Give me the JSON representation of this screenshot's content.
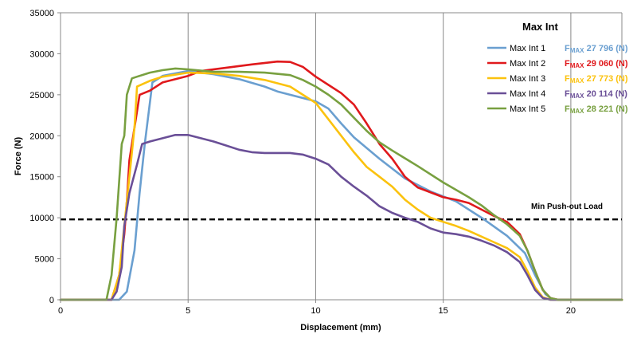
{
  "chart_data": {
    "type": "line",
    "title": "",
    "xlabel": "Displacement (mm)",
    "ylabel": "Force (N)",
    "xlim": [
      0,
      22
    ],
    "ylim": [
      0,
      35000
    ],
    "x_ticks": [
      0,
      5,
      10,
      15,
      20
    ],
    "y_ticks": [
      0,
      5000,
      10000,
      15000,
      20000,
      25000,
      30000,
      35000
    ],
    "grid": "vertical",
    "legend": {
      "title": "Max Int",
      "placement": "top-right",
      "fmax_prefix": "F",
      "fmax_sub": "MAX"
    },
    "reference_line": {
      "label": "Min Push-out Load",
      "y": 9800,
      "style": "dashed"
    },
    "series": [
      {
        "name": "Max Int 1",
        "fmax_text": "27 796 (N)",
        "color": "#6a9fd0",
        "points": [
          [
            0,
            0
          ],
          [
            2.3,
            0
          ],
          [
            2.6,
            1000
          ],
          [
            2.9,
            6000
          ],
          [
            3.1,
            13000
          ],
          [
            3.3,
            19000
          ],
          [
            3.6,
            26500
          ],
          [
            4.0,
            27300
          ],
          [
            5.0,
            27900
          ],
          [
            6.0,
            27500
          ],
          [
            7.0,
            26900
          ],
          [
            8.0,
            26000
          ],
          [
            8.5,
            25400
          ],
          [
            9.0,
            25000
          ],
          [
            10.0,
            24200
          ],
          [
            10.5,
            23300
          ],
          [
            11.0,
            21500
          ],
          [
            11.5,
            19800
          ],
          [
            12.5,
            17200
          ],
          [
            13.5,
            14800
          ],
          [
            14.5,
            13200
          ],
          [
            15.5,
            12000
          ],
          [
            16.5,
            10000
          ],
          [
            17.5,
            7800
          ],
          [
            18.2,
            5700
          ],
          [
            18.6,
            3000
          ],
          [
            19.0,
            700
          ],
          [
            19.3,
            0
          ],
          [
            22,
            0
          ]
        ]
      },
      {
        "name": "Max Int 2",
        "fmax_text": "29 060 (N)",
        "color": "#e0191c",
        "points": [
          [
            0,
            0
          ],
          [
            2.0,
            0
          ],
          [
            2.3,
            3000
          ],
          [
            2.5,
            8000
          ],
          [
            2.6,
            12000
          ],
          [
            2.7,
            17000
          ],
          [
            2.9,
            21000
          ],
          [
            3.1,
            25000
          ],
          [
            3.5,
            25500
          ],
          [
            4.0,
            26500
          ],
          [
            5.0,
            27300
          ],
          [
            5.5,
            27900
          ],
          [
            6.5,
            28300
          ],
          [
            7.5,
            28700
          ],
          [
            8.5,
            29050
          ],
          [
            9.0,
            29000
          ],
          [
            9.5,
            28400
          ],
          [
            10.0,
            27200
          ],
          [
            10.5,
            26200
          ],
          [
            11.0,
            25200
          ],
          [
            11.5,
            23800
          ],
          [
            12.0,
            21500
          ],
          [
            12.5,
            19000
          ],
          [
            13.0,
            17200
          ],
          [
            13.5,
            15000
          ],
          [
            14.0,
            13700
          ],
          [
            15.0,
            12500
          ],
          [
            15.5,
            12200
          ],
          [
            16.0,
            11800
          ],
          [
            16.5,
            11000
          ],
          [
            17.0,
            10200
          ],
          [
            17.5,
            9500
          ],
          [
            18.0,
            8000
          ],
          [
            18.3,
            6000
          ],
          [
            18.6,
            3500
          ],
          [
            18.9,
            1200
          ],
          [
            19.2,
            200
          ],
          [
            19.5,
            0
          ],
          [
            22,
            0
          ]
        ]
      },
      {
        "name": "Max Int 3",
        "fmax_text": "27 773 (N)",
        "color": "#fbc20e",
        "points": [
          [
            0,
            0
          ],
          [
            2.0,
            0
          ],
          [
            2.3,
            3000
          ],
          [
            2.5,
            9000
          ],
          [
            2.7,
            15000
          ],
          [
            2.9,
            21000
          ],
          [
            3.0,
            26000
          ],
          [
            3.5,
            26700
          ],
          [
            4.0,
            27200
          ],
          [
            5.0,
            27700
          ],
          [
            6.0,
            27600
          ],
          [
            7.0,
            27300
          ],
          [
            8.0,
            26800
          ],
          [
            9.0,
            26000
          ],
          [
            9.5,
            25000
          ],
          [
            10.0,
            24000
          ],
          [
            10.5,
            22000
          ],
          [
            11.0,
            20000
          ],
          [
            11.5,
            18000
          ],
          [
            12.0,
            16200
          ],
          [
            12.5,
            15000
          ],
          [
            13.0,
            13800
          ],
          [
            13.5,
            12200
          ],
          [
            14.0,
            11000
          ],
          [
            14.5,
            10000
          ],
          [
            15.0,
            9500
          ],
          [
            15.5,
            9000
          ],
          [
            16.0,
            8400
          ],
          [
            16.5,
            7700
          ],
          [
            17.0,
            7000
          ],
          [
            17.5,
            6300
          ],
          [
            18.0,
            5200
          ],
          [
            18.3,
            3500
          ],
          [
            18.6,
            1500
          ],
          [
            18.9,
            300
          ],
          [
            19.2,
            0
          ],
          [
            22,
            0
          ]
        ]
      },
      {
        "name": "Max Int 4",
        "fmax_text": "20 114 (N)",
        "color": "#6a4f97",
        "points": [
          [
            0,
            0
          ],
          [
            2.0,
            0
          ],
          [
            2.2,
            1000
          ],
          [
            2.4,
            4000
          ],
          [
            2.5,
            9000
          ],
          [
            2.7,
            13000
          ],
          [
            3.0,
            16500
          ],
          [
            3.2,
            19000
          ],
          [
            3.5,
            19300
          ],
          [
            4.0,
            19700
          ],
          [
            4.5,
            20100
          ],
          [
            5.0,
            20100
          ],
          [
            5.5,
            19700
          ],
          [
            6.0,
            19300
          ],
          [
            6.5,
            18800
          ],
          [
            7.0,
            18300
          ],
          [
            7.5,
            18000
          ],
          [
            8.0,
            17900
          ],
          [
            9.0,
            17900
          ],
          [
            9.5,
            17700
          ],
          [
            10.0,
            17200
          ],
          [
            10.5,
            16500
          ],
          [
            11.0,
            15000
          ],
          [
            11.5,
            13800
          ],
          [
            12.0,
            12700
          ],
          [
            12.5,
            11400
          ],
          [
            13.0,
            10600
          ],
          [
            13.5,
            10000
          ],
          [
            14.0,
            9500
          ],
          [
            14.5,
            8700
          ],
          [
            15.0,
            8200
          ],
          [
            15.5,
            8000
          ],
          [
            16.0,
            7700
          ],
          [
            16.5,
            7200
          ],
          [
            17.0,
            6600
          ],
          [
            17.5,
            5800
          ],
          [
            18.0,
            4600
          ],
          [
            18.3,
            3000
          ],
          [
            18.6,
            1200
          ],
          [
            18.9,
            200
          ],
          [
            19.2,
            0
          ],
          [
            22,
            0
          ]
        ]
      },
      {
        "name": "Max Int 5",
        "fmax_text": "28 221 (N)",
        "color": "#78a040",
        "points": [
          [
            0,
            0
          ],
          [
            1.8,
            0
          ],
          [
            2.0,
            3000
          ],
          [
            2.2,
            10000
          ],
          [
            2.4,
            19000
          ],
          [
            2.5,
            20000
          ],
          [
            2.6,
            25000
          ],
          [
            2.8,
            27000
          ],
          [
            3.0,
            27200
          ],
          [
            3.5,
            27700
          ],
          [
            4.0,
            28000
          ],
          [
            4.5,
            28200
          ],
          [
            5.0,
            28100
          ],
          [
            6.0,
            27800
          ],
          [
            7.0,
            27800
          ],
          [
            8.0,
            27700
          ],
          [
            9.0,
            27400
          ],
          [
            9.5,
            26800
          ],
          [
            10.0,
            26000
          ],
          [
            10.5,
            25000
          ],
          [
            11.0,
            23800
          ],
          [
            11.5,
            22200
          ],
          [
            12.0,
            20600
          ],
          [
            12.5,
            19200
          ],
          [
            13.0,
            18200
          ],
          [
            14.0,
            16300
          ],
          [
            15.0,
            14300
          ],
          [
            16.0,
            12500
          ],
          [
            16.5,
            11500
          ],
          [
            17.0,
            10300
          ],
          [
            17.5,
            9200
          ],
          [
            18.0,
            7800
          ],
          [
            18.3,
            6000
          ],
          [
            18.6,
            3500
          ],
          [
            18.9,
            1200
          ],
          [
            19.2,
            200
          ],
          [
            19.5,
            0
          ],
          [
            22,
            0
          ]
        ]
      }
    ]
  }
}
